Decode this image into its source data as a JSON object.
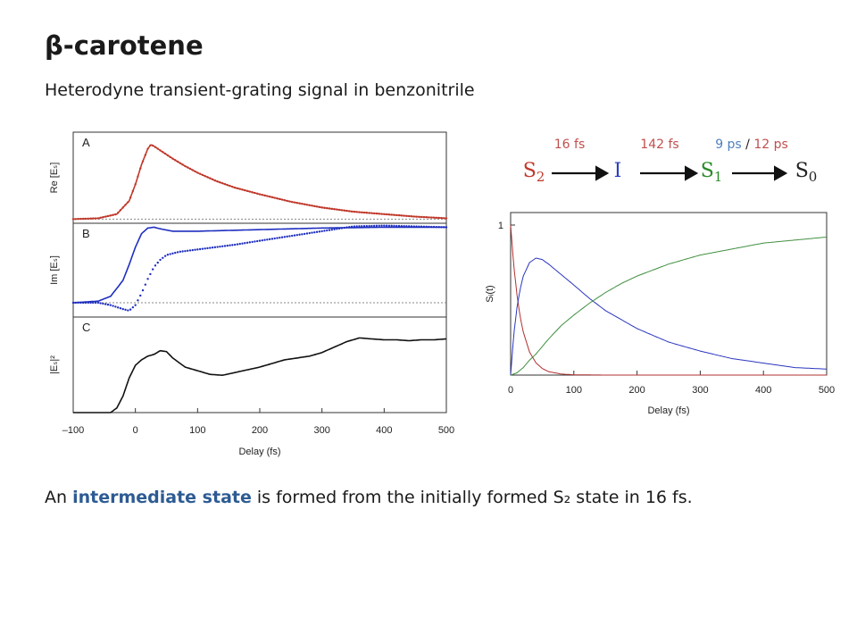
{
  "slide": {
    "title": "β-carotene",
    "subtitle": "Heterodyne transient-grating signal in benzonitrile",
    "caption": {
      "pre": "An ",
      "highlight": "intermediate state",
      "post": " is formed from the initially formed S₂ state in 16 fs.",
      "highlight_color": "#2d5b93"
    }
  },
  "scheme": {
    "states": [
      {
        "base": "S",
        "sub": "2",
        "color": "#c0392b"
      },
      {
        "base": "I",
        "sub": "",
        "color": "#2a3fbf"
      },
      {
        "base": "S",
        "sub": "1",
        "color": "#2a8a2a"
      },
      {
        "base": "S",
        "sub": "0",
        "color": "#222222"
      }
    ],
    "times": [
      {
        "parts": [
          {
            "text": "16 fs",
            "color": "#c0504d"
          }
        ]
      },
      {
        "parts": [
          {
            "text": "142 fs",
            "color": "#c0504d"
          }
        ]
      },
      {
        "parts": [
          {
            "text": "9 ps",
            "color": "#4f81bd"
          },
          {
            "text": " / ",
            "color": "#222222"
          },
          {
            "text": "12 ps",
            "color": "#c0504d"
          }
        ]
      }
    ]
  },
  "chart_data": [
    {
      "type": "line",
      "xlabel": "Delay (fs)",
      "xlim": [
        -100,
        500
      ],
      "x_ticks": [
        "–100",
        "0",
        "100",
        "200",
        "300",
        "400",
        "500"
      ],
      "panels": [
        {
          "letter": "A",
          "ylabel": "Re [Eₛ]",
          "ylim": [
            -0.05,
            1.05
          ],
          "baseline": 0,
          "series": [
            {
              "name": "",
              "style": "dots",
              "color": "#c0392b",
              "x": [
                -100,
                -60,
                -30,
                -10,
                0,
                10,
                20,
                25,
                30,
                40,
                50,
                60,
                80,
                100,
                130,
                160,
                200,
                250,
                300,
                350,
                400,
                450,
                500
              ],
              "y": [
                0,
                0.01,
                0.06,
                0.22,
                0.42,
                0.66,
                0.85,
                0.9,
                0.88,
                0.83,
                0.78,
                0.73,
                0.64,
                0.56,
                0.46,
                0.38,
                0.3,
                0.21,
                0.14,
                0.09,
                0.06,
                0.03,
                0.01
              ]
            },
            {
              "name": "",
              "style": "line",
              "color": "#c0392b",
              "x": [
                -100,
                -60,
                -30,
                -10,
                0,
                10,
                20,
                25,
                30,
                40,
                50,
                60,
                80,
                100,
                130,
                160,
                200,
                250,
                300,
                350,
                400,
                450,
                500
              ],
              "y": [
                0,
                0.01,
                0.06,
                0.22,
                0.42,
                0.66,
                0.85,
                0.9,
                0.88,
                0.83,
                0.78,
                0.73,
                0.64,
                0.56,
                0.46,
                0.38,
                0.3,
                0.21,
                0.14,
                0.09,
                0.06,
                0.03,
                0.01
              ]
            }
          ]
        },
        {
          "letter": "B",
          "ylabel": "Im [Eₛ]",
          "ylim": [
            -0.18,
            1.0
          ],
          "baseline": 0,
          "series": [
            {
              "name": "",
              "style": "line",
              "color": "#1f2fbf",
              "x": [
                -100,
                -60,
                -40,
                -20,
                -10,
                0,
                10,
                20,
                30,
                40,
                60,
                100,
                150,
                200,
                300,
                400,
                500
              ],
              "y": [
                0,
                0.02,
                0.08,
                0.28,
                0.48,
                0.7,
                0.87,
                0.94,
                0.95,
                0.93,
                0.9,
                0.9,
                0.91,
                0.92,
                0.94,
                0.95,
                0.95
              ]
            },
            {
              "name": "",
              "style": "dots",
              "color": "#1f2fbf",
              "x": [
                -100,
                -60,
                -40,
                -20,
                -10,
                0,
                10,
                20,
                30,
                40,
                50,
                70,
                100,
                130,
                160,
                200,
                250,
                300,
                350,
                400,
                450,
                500
              ],
              "y": [
                0,
                0,
                -0.03,
                -0.08,
                -0.1,
                -0.03,
                0.12,
                0.3,
                0.45,
                0.54,
                0.6,
                0.64,
                0.67,
                0.7,
                0.73,
                0.78,
                0.84,
                0.9,
                0.96,
                0.97,
                0.96,
                0.95
              ]
            }
          ]
        },
        {
          "letter": "C",
          "ylabel": "|Eₛ|²",
          "ylim": [
            0,
            1.05
          ],
          "series": [
            {
              "name": "",
              "style": "line",
              "color": "#111111",
              "x": [
                -100,
                -40,
                -30,
                -20,
                -10,
                0,
                10,
                20,
                30,
                40,
                50,
                60,
                70,
                80,
                100,
                120,
                140,
                160,
                180,
                200,
                220,
                240,
                260,
                280,
                300,
                320,
                340,
                360,
                380,
                400,
                420,
                440,
                460,
                480,
                500
              ],
              "y": [
                0,
                0,
                0.05,
                0.18,
                0.38,
                0.52,
                0.58,
                0.62,
                0.64,
                0.68,
                0.67,
                0.6,
                0.55,
                0.5,
                0.46,
                0.42,
                0.41,
                0.44,
                0.47,
                0.5,
                0.54,
                0.58,
                0.6,
                0.62,
                0.66,
                0.72,
                0.78,
                0.82,
                0.81,
                0.8,
                0.8,
                0.79,
                0.8,
                0.8,
                0.81
              ]
            }
          ]
        }
      ]
    },
    {
      "type": "line",
      "xlabel": "Delay (fs)",
      "ylabel": "Sᵢ(t)",
      "xlim": [
        0,
        500
      ],
      "ylim": [
        0,
        1
      ],
      "x_ticks": [
        "0",
        "100",
        "200",
        "300",
        "400",
        "500"
      ],
      "y_ticks": [
        "1"
      ],
      "series": [
        {
          "name": "",
          "color": "#b03030",
          "x": [
            0,
            5,
            10,
            15,
            20,
            30,
            40,
            50,
            60,
            80,
            100,
            150,
            200,
            300,
            400,
            500
          ],
          "y": [
            1,
            0.73,
            0.535,
            0.392,
            0.287,
            0.153,
            0.082,
            0.044,
            0.023,
            0.007,
            0.002,
            0,
            0,
            0,
            0,
            0
          ]
        },
        {
          "name": "",
          "color": "#2a35c0",
          "x": [
            0,
            5,
            10,
            15,
            20,
            30,
            40,
            50,
            60,
            80,
            100,
            125,
            150,
            175,
            200,
            250,
            300,
            350,
            400,
            450,
            500
          ],
          "y": [
            0,
            0.27,
            0.45,
            0.57,
            0.66,
            0.75,
            0.78,
            0.77,
            0.74,
            0.67,
            0.6,
            0.51,
            0.43,
            0.37,
            0.31,
            0.22,
            0.16,
            0.11,
            0.08,
            0.05,
            0.04
          ]
        },
        {
          "name": "",
          "color": "#3f8f3f",
          "x": [
            0,
            10,
            20,
            30,
            40,
            50,
            60,
            80,
            100,
            125,
            150,
            175,
            200,
            250,
            300,
            350,
            400,
            450,
            500
          ],
          "y": [
            0,
            0.015,
            0.05,
            0.1,
            0.14,
            0.19,
            0.24,
            0.33,
            0.4,
            0.48,
            0.55,
            0.61,
            0.66,
            0.74,
            0.8,
            0.84,
            0.88,
            0.9,
            0.92
          ]
        }
      ]
    }
  ]
}
